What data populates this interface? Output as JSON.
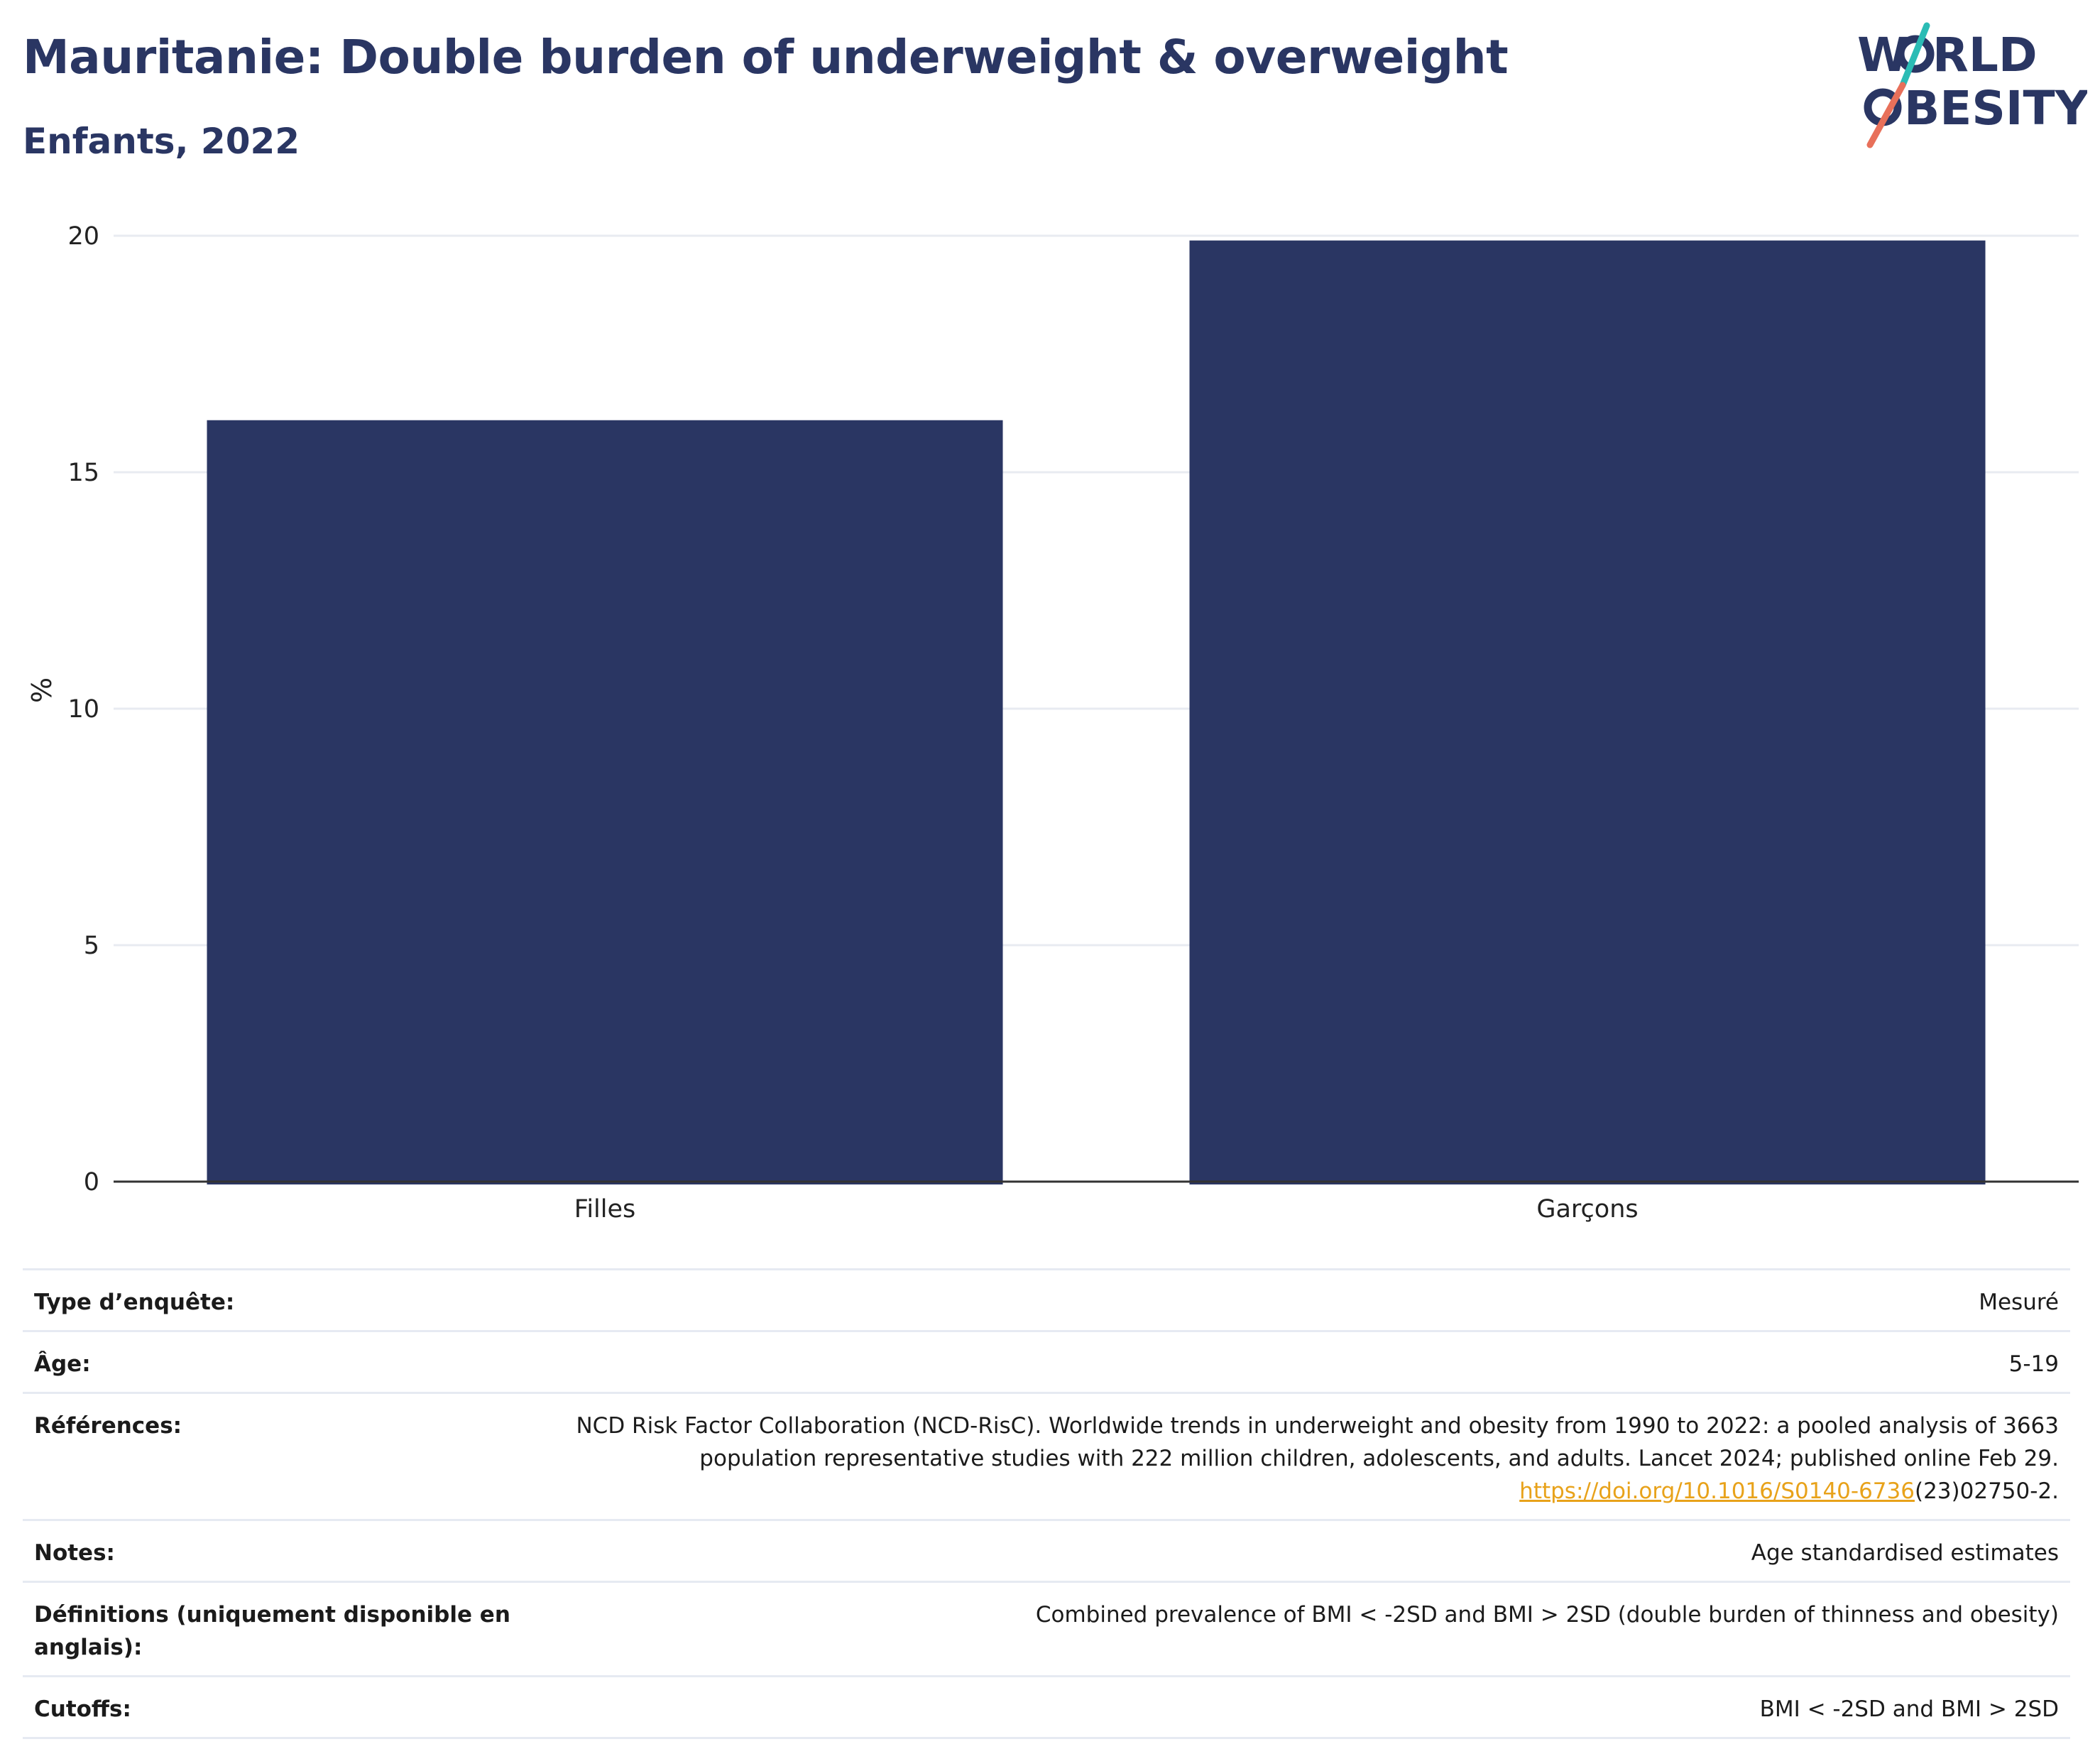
{
  "header": {
    "title": "Mauritanie: Double burden of underweight & overweight",
    "subtitle": "Enfants, 2022"
  },
  "logo": {
    "line1": "W",
    "line1b": "RLD",
    "line2": "BESITY",
    "colors": {
      "text": "#2a3663",
      "slash_top": "#2bbcb5",
      "slash_bottom": "#e8705a"
    }
  },
  "chart_data": {
    "type": "bar",
    "categories": [
      "Filles",
      "Garçons"
    ],
    "values": [
      16.1,
      19.9
    ],
    "ylabel": "%",
    "xlabel": "",
    "ylim": [
      0,
      20
    ],
    "yticks": [
      0,
      5,
      10,
      15,
      20
    ],
    "grid": true,
    "bar_color": "#2a3663"
  },
  "info": {
    "rows": [
      {
        "key": "Type d’enquête:",
        "value": "Mesuré"
      },
      {
        "key": "Âge:",
        "value": "5-19"
      },
      {
        "key": "Références:",
        "value_text": "NCD Risk Factor Collaboration (NCD-RisC). Worldwide trends in underweight and obesity from 1990 to 2022: a pooled analysis of 3663 population representative studies with 222 million children, adolescents, and adults. Lancet 2024; published online Feb 29.",
        "link": "https://doi.org/10.1016/S0140-6736",
        "value_suffix": "(23)02750-2."
      },
      {
        "key": "Notes:",
        "value": "Age standardised estimates"
      },
      {
        "key": "Définitions (uniquement disponible en anglais):",
        "value": "Combined prevalence of BMI < -2SD and BMI > 2SD (double burden of thinness and obesity)"
      },
      {
        "key": "Cutoffs:",
        "value": "BMI < -2SD and BMI > 2SD"
      }
    ]
  }
}
